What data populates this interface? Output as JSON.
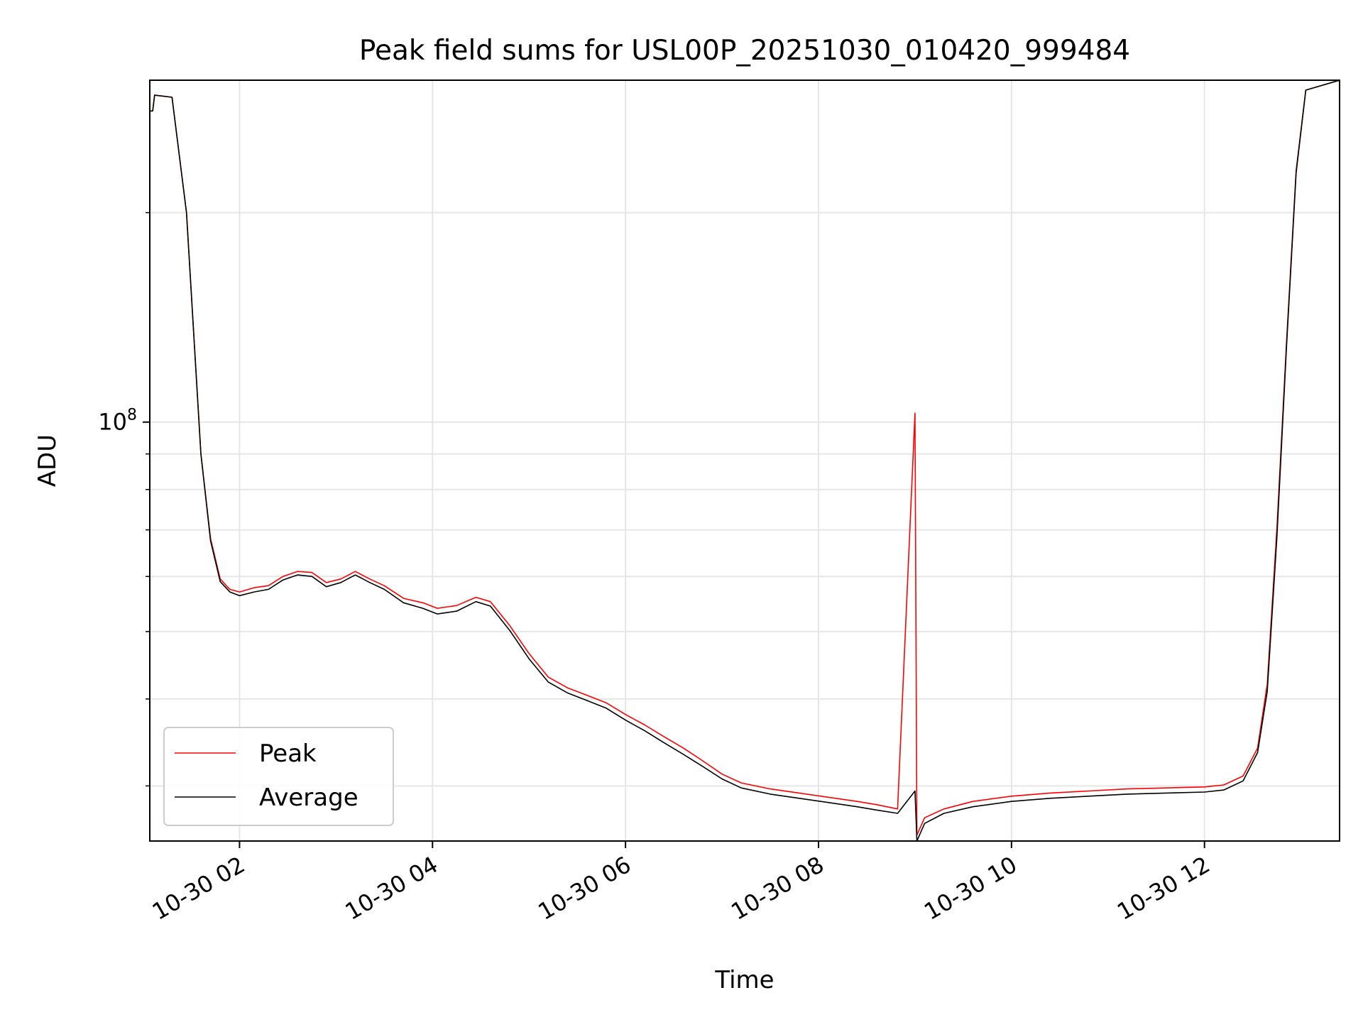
{
  "chart_data": {
    "type": "line",
    "title": "Peak field sums for USL00P_20251030_010420_999484",
    "xlabel": "Time",
    "ylabel": "ADU",
    "y_scale": "log",
    "ylim": [
      25000000,
      310000000
    ],
    "xlim_hours": [
      1.07,
      13.4
    ],
    "grid": true,
    "legend_position": "lower-left",
    "x_ticks": [
      {
        "hour": 2,
        "label": "10-30 02"
      },
      {
        "hour": 4,
        "label": "10-30 04"
      },
      {
        "hour": 6,
        "label": "10-30 06"
      },
      {
        "hour": 8,
        "label": "10-30 08"
      },
      {
        "hour": 10,
        "label": "10-30 10"
      },
      {
        "hour": 12,
        "label": "10-30 12"
      }
    ],
    "y_major_ticks": [
      {
        "value": 100000000,
        "base": "10",
        "exp": "8"
      }
    ],
    "y_minor_ticks": [
      30000000,
      40000000,
      50000000,
      60000000,
      70000000,
      80000000,
      90000000,
      200000000
    ],
    "series": [
      {
        "name": "Peak",
        "color": "#ff0000",
        "points": [
          [
            1.07,
            280000000
          ],
          [
            1.1,
            280000000
          ],
          [
            1.12,
            295000000
          ],
          [
            1.3,
            293000000
          ],
          [
            1.45,
            200000000
          ],
          [
            1.6,
            90000000
          ],
          [
            1.7,
            68000000
          ],
          [
            1.8,
            59500000
          ],
          [
            1.9,
            57500000
          ],
          [
            2.0,
            57000000
          ],
          [
            2.15,
            57800000
          ],
          [
            2.3,
            58200000
          ],
          [
            2.45,
            60000000
          ],
          [
            2.6,
            61000000
          ],
          [
            2.75,
            60800000
          ],
          [
            2.9,
            58800000
          ],
          [
            3.05,
            59500000
          ],
          [
            3.2,
            61000000
          ],
          [
            3.35,
            59500000
          ],
          [
            3.5,
            58200000
          ],
          [
            3.7,
            55800000
          ],
          [
            3.9,
            55000000
          ],
          [
            4.05,
            54000000
          ],
          [
            4.25,
            54500000
          ],
          [
            4.45,
            56000000
          ],
          [
            4.6,
            55200000
          ],
          [
            4.8,
            51000000
          ],
          [
            5.0,
            46500000
          ],
          [
            5.2,
            43000000
          ],
          [
            5.4,
            41500000
          ],
          [
            5.6,
            40500000
          ],
          [
            5.8,
            39500000
          ],
          [
            6.0,
            38000000
          ],
          [
            6.2,
            36700000
          ],
          [
            6.4,
            35300000
          ],
          [
            6.6,
            34000000
          ],
          [
            6.8,
            32600000
          ],
          [
            7.0,
            31200000
          ],
          [
            7.2,
            30300000
          ],
          [
            7.5,
            29700000
          ],
          [
            7.8,
            29300000
          ],
          [
            8.1,
            28900000
          ],
          [
            8.4,
            28500000
          ],
          [
            8.6,
            28200000
          ],
          [
            8.82,
            27800000
          ],
          [
            9.0,
            103000000
          ],
          [
            9.02,
            25500000
          ],
          [
            9.1,
            27000000
          ],
          [
            9.3,
            27800000
          ],
          [
            9.6,
            28500000
          ],
          [
            10.0,
            29000000
          ],
          [
            10.4,
            29300000
          ],
          [
            10.8,
            29500000
          ],
          [
            11.2,
            29700000
          ],
          [
            11.6,
            29800000
          ],
          [
            12.0,
            29900000
          ],
          [
            12.2,
            30100000
          ],
          [
            12.4,
            31000000
          ],
          [
            12.55,
            34000000
          ],
          [
            12.65,
            42000000
          ],
          [
            12.75,
            70000000
          ],
          [
            12.85,
            130000000
          ],
          [
            12.95,
            230000000
          ],
          [
            13.05,
            300000000
          ],
          [
            13.4,
            310000000
          ]
        ]
      },
      {
        "name": "Average",
        "color": "#000000",
        "points": [
          [
            1.07,
            280000000
          ],
          [
            1.1,
            280000000
          ],
          [
            1.12,
            295000000
          ],
          [
            1.3,
            293000000
          ],
          [
            1.45,
            200000000
          ],
          [
            1.6,
            90000000
          ],
          [
            1.7,
            67500000
          ],
          [
            1.8,
            59000000
          ],
          [
            1.9,
            57000000
          ],
          [
            2.0,
            56300000
          ],
          [
            2.15,
            57000000
          ],
          [
            2.3,
            57500000
          ],
          [
            2.45,
            59300000
          ],
          [
            2.6,
            60300000
          ],
          [
            2.75,
            60000000
          ],
          [
            2.9,
            58000000
          ],
          [
            3.05,
            58800000
          ],
          [
            3.2,
            60300000
          ],
          [
            3.35,
            58800000
          ],
          [
            3.5,
            57500000
          ],
          [
            3.7,
            55000000
          ],
          [
            3.9,
            54000000
          ],
          [
            4.05,
            53000000
          ],
          [
            4.25,
            53500000
          ],
          [
            4.45,
            55200000
          ],
          [
            4.6,
            54400000
          ],
          [
            4.8,
            50200000
          ],
          [
            5.0,
            45700000
          ],
          [
            5.2,
            42300000
          ],
          [
            5.4,
            40800000
          ],
          [
            5.6,
            39800000
          ],
          [
            5.8,
            38800000
          ],
          [
            6.0,
            37300000
          ],
          [
            6.2,
            36000000
          ],
          [
            6.4,
            34600000
          ],
          [
            6.6,
            33300000
          ],
          [
            6.8,
            32000000
          ],
          [
            7.0,
            30700000
          ],
          [
            7.2,
            29800000
          ],
          [
            7.5,
            29200000
          ],
          [
            7.8,
            28800000
          ],
          [
            8.1,
            28400000
          ],
          [
            8.4,
            28000000
          ],
          [
            8.6,
            27700000
          ],
          [
            8.82,
            27400000
          ],
          [
            9.0,
            29500000
          ],
          [
            9.02,
            25000000
          ],
          [
            9.1,
            26500000
          ],
          [
            9.3,
            27400000
          ],
          [
            9.6,
            28000000
          ],
          [
            10.0,
            28500000
          ],
          [
            10.4,
            28800000
          ],
          [
            10.8,
            29000000
          ],
          [
            11.2,
            29200000
          ],
          [
            11.6,
            29300000
          ],
          [
            12.0,
            29400000
          ],
          [
            12.2,
            29600000
          ],
          [
            12.4,
            30500000
          ],
          [
            12.55,
            33500000
          ],
          [
            12.65,
            41000000
          ],
          [
            12.75,
            68000000
          ],
          [
            12.85,
            128000000
          ],
          [
            12.95,
            228000000
          ],
          [
            13.05,
            300000000
          ],
          [
            13.4,
            310000000
          ]
        ]
      }
    ]
  }
}
